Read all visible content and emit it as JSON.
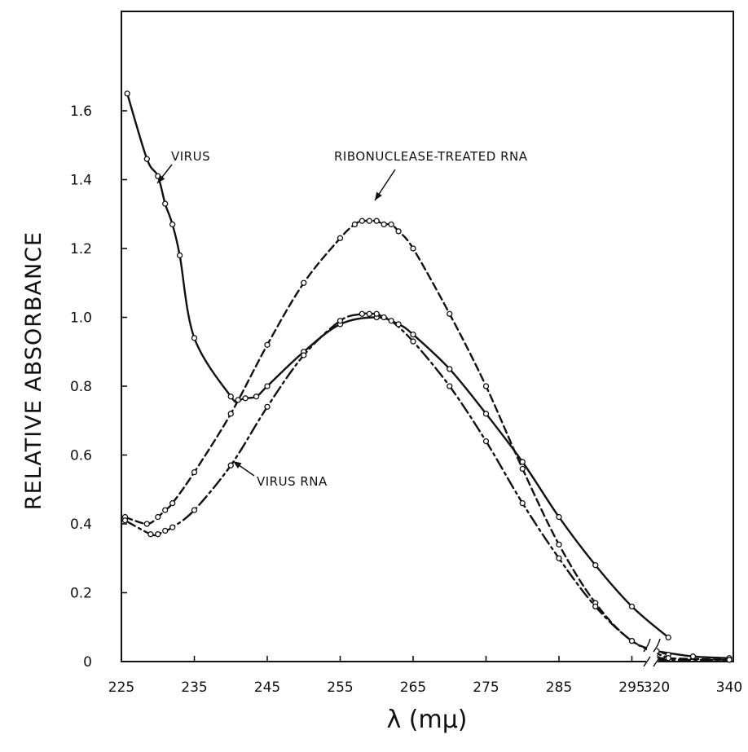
{
  "chart_data": {
    "type": "line",
    "ylabel": "RELATIVE  ABSORBANCE",
    "xlabel": "λ  (mμ)",
    "ylim": [
      0,
      1.8
    ],
    "x_ticks": [
      {
        "value": 225,
        "label": "225"
      },
      {
        "value": 235,
        "label": "235"
      },
      {
        "value": 245,
        "label": "245"
      },
      {
        "value": 255,
        "label": "255"
      },
      {
        "value": 265,
        "label": "265"
      },
      {
        "value": 275,
        "label": "275"
      },
      {
        "value": 285,
        "label": "285"
      },
      {
        "value": 295,
        "label": "295"
      },
      {
        "value": 320,
        "label": "320"
      },
      {
        "value": 340,
        "label": "340"
      }
    ],
    "y_ticks": [
      {
        "value": 0,
        "label": "0"
      },
      {
        "value": 0.2,
        "label": "0.2"
      },
      {
        "value": 0.4,
        "label": "0.4"
      },
      {
        "value": 0.6,
        "label": "0.6"
      },
      {
        "value": 0.8,
        "label": "0.8"
      },
      {
        "value": 1.0,
        "label": "1.0"
      },
      {
        "value": 1.2,
        "label": "1.2"
      },
      {
        "value": 1.4,
        "label": "1.4"
      },
      {
        "value": 1.6,
        "label": "1.6"
      }
    ],
    "axis_break": "between 295 and 320",
    "grid": false,
    "series": [
      {
        "name": "VIRUS",
        "style": "solid",
        "x": [
          225.8,
          228.5,
          230,
          231,
          232,
          233,
          235,
          240,
          241,
          242,
          243.5,
          245,
          250,
          255,
          260,
          263,
          265,
          270,
          275,
          280,
          285,
          290,
          295,
          300,
          320,
          330,
          340
        ],
        "y": [
          1.65,
          1.46,
          1.41,
          1.33,
          1.27,
          1.18,
          0.94,
          0.77,
          0.76,
          0.765,
          0.77,
          0.8,
          0.9,
          0.98,
          1.0,
          0.98,
          0.95,
          0.85,
          0.72,
          0.58,
          0.42,
          0.28,
          0.16,
          0.07,
          0.03,
          0.015,
          0.01
        ]
      },
      {
        "name": "RIBONUCLEASE-TREATED RNA",
        "style": "dashed",
        "x": [
          225.5,
          228.5,
          230,
          231,
          232,
          235,
          240,
          245,
          250,
          255,
          257,
          258,
          259,
          260,
          261,
          262,
          263,
          265,
          270,
          275,
          280,
          285,
          290,
          295,
          300,
          320,
          340
        ],
        "y": [
          0.42,
          0.4,
          0.42,
          0.44,
          0.46,
          0.55,
          0.72,
          0.92,
          1.1,
          1.23,
          1.27,
          1.28,
          1.28,
          1.28,
          1.27,
          1.27,
          1.25,
          1.2,
          1.01,
          0.8,
          0.56,
          0.34,
          0.17,
          0.06,
          0.02,
          0.01,
          0.005
        ]
      },
      {
        "name": "VIRUS RNA",
        "style": "dash-dot",
        "x": [
          225.5,
          229,
          230,
          231,
          232,
          235,
          240,
          245,
          250,
          255,
          258,
          259,
          260,
          261,
          262,
          265,
          270,
          275,
          280,
          285,
          290,
          295,
          300,
          320,
          340
        ],
        "y": [
          0.41,
          0.37,
          0.37,
          0.38,
          0.39,
          0.44,
          0.57,
          0.74,
          0.89,
          0.99,
          1.01,
          1.01,
          1.01,
          1.0,
          0.99,
          0.93,
          0.8,
          0.64,
          0.46,
          0.3,
          0.16,
          0.06,
          0.01,
          0.005,
          0.005
        ]
      }
    ],
    "annotations": [
      {
        "text": "VIRUS",
        "target_series": "VIRUS"
      },
      {
        "text": "RIBONUCLEASE-TREATED RNA",
        "target_series": "RIBONUCLEASE-TREATED RNA"
      },
      {
        "text": "VIRUS RNA",
        "target_series": "VIRUS RNA"
      }
    ]
  }
}
